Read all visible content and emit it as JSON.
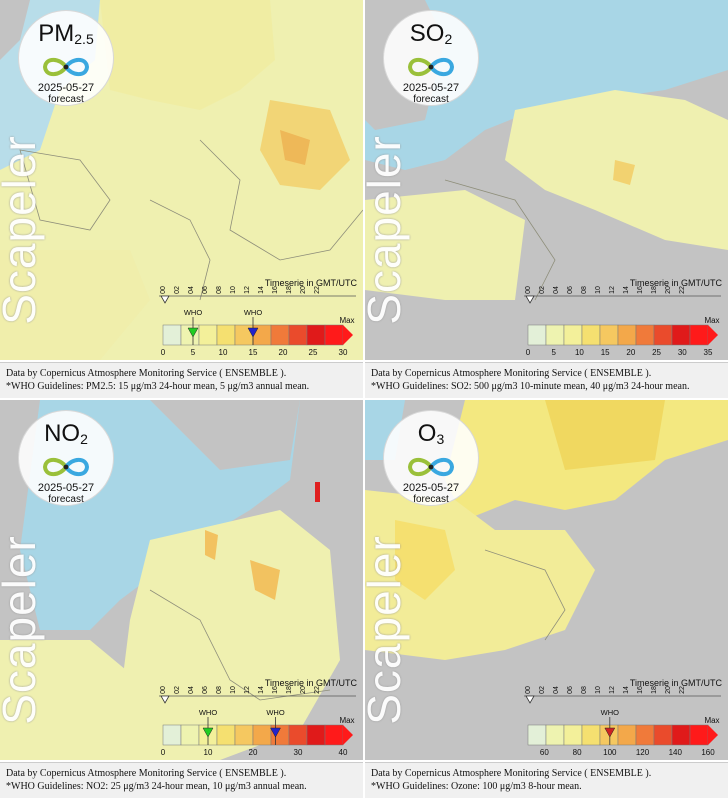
{
  "panels": [
    {
      "id": "pm25",
      "pollutant": "PM",
      "subscript": "2.5",
      "date": "2025-05-27",
      "forecast_label": "forecast",
      "watermark": "Scapeler",
      "timeserie_label": "Timeserie in GMT/UTC",
      "hours": [
        "00",
        "02",
        "04",
        "06",
        "08",
        "10",
        "12",
        "14",
        "16",
        "18",
        "20",
        "22"
      ],
      "who_labels": [
        "WHO",
        "WHO"
      ],
      "who_markers": [
        {
          "value": 5,
          "color": "#22cc22"
        },
        {
          "value": 15,
          "color": "#2222cc"
        }
      ],
      "max_label": "Max",
      "scale_ticks": [
        "0",
        "5",
        "10",
        "15",
        "20",
        "25",
        "30"
      ],
      "scale_range": [
        0,
        30
      ],
      "footer_source": "Data by Copernicus Atmosphere Monitoring Service ( ENSEMBLE ).",
      "footer_who": "*WHO Guidelines: PM2.5: 15 μg/m3 24-hour mean, 5 μg/m3 annual mean."
    },
    {
      "id": "so2",
      "pollutant": "SO",
      "subscript": "2",
      "date": "2025-05-27",
      "forecast_label": "forecast",
      "watermark": "Scapeler",
      "timeserie_label": "Timeserie in GMT/UTC",
      "hours": [
        "00",
        "02",
        "04",
        "06",
        "08",
        "10",
        "12",
        "14",
        "16",
        "18",
        "20",
        "22"
      ],
      "who_labels": [],
      "who_markers": [],
      "max_label": "Max",
      "scale_ticks": [
        "0",
        "5",
        "10",
        "15",
        "20",
        "25",
        "30",
        "35"
      ],
      "scale_range": [
        0,
        35
      ],
      "footer_source": "Data by Copernicus Atmosphere Monitoring Service ( ENSEMBLE ).",
      "footer_who": "*WHO Guidelines: SO2: 500 μg/m3 10-minute mean, 40 μg/m3 24-hour mean."
    },
    {
      "id": "no2",
      "pollutant": "NO",
      "subscript": "2",
      "date": "2025-05-27",
      "forecast_label": "forecast",
      "watermark": "Scapeler",
      "timeserie_label": "Timeserie in GMT/UTC",
      "hours": [
        "00",
        "02",
        "04",
        "06",
        "08",
        "10",
        "12",
        "14",
        "16",
        "18",
        "20",
        "22"
      ],
      "who_labels": [
        "WHO",
        "WHO"
      ],
      "who_markers": [
        {
          "value": 10,
          "color": "#22cc22"
        },
        {
          "value": 25,
          "color": "#2222cc"
        }
      ],
      "max_label": "Max",
      "scale_ticks": [
        "0",
        "10",
        "20",
        "30",
        "40"
      ],
      "scale_range": [
        0,
        40
      ],
      "footer_source": "Data by Copernicus Atmosphere Monitoring Service ( ENSEMBLE ).",
      "footer_who": "*WHO Guidelines: NO2: 25 μg/m3 24-hour mean, 10 μg/m3 annual mean."
    },
    {
      "id": "o3",
      "pollutant": "O",
      "subscript": "3",
      "date": "2025-05-27",
      "forecast_label": "forecast",
      "watermark": "Scapeler",
      "timeserie_label": "Timeserie in GMT/UTC",
      "hours": [
        "00",
        "02",
        "04",
        "06",
        "08",
        "10",
        "12",
        "14",
        "16",
        "18",
        "20",
        "22"
      ],
      "who_labels": [
        "WHO"
      ],
      "who_markers": [
        {
          "value": 100,
          "color": "#cc2222"
        }
      ],
      "max_label": "Max",
      "scale_ticks": [
        "60",
        "80",
        "100",
        "120",
        "140",
        "160"
      ],
      "scale_range": [
        50,
        160
      ],
      "footer_source": "Data by Copernicus Atmosphere Monitoring Service ( ENSEMBLE ).",
      "footer_who": "*WHO Guidelines: Ozone: 100 μg/m3 8-hour mean."
    }
  ],
  "colors": {
    "sea": "#a8d6e6",
    "land_low": "#eff0b0",
    "land_mid": "#f4e47c",
    "land_high": "#f0c050",
    "no_data": "#c3c3c3",
    "scale": [
      "#e3f0d8",
      "#eef3b0",
      "#f3f09a",
      "#f5e070",
      "#f5c860",
      "#f3a84a",
      "#f07a3a",
      "#ea4b2c",
      "#e01a1a",
      "#ff1a1a"
    ]
  }
}
